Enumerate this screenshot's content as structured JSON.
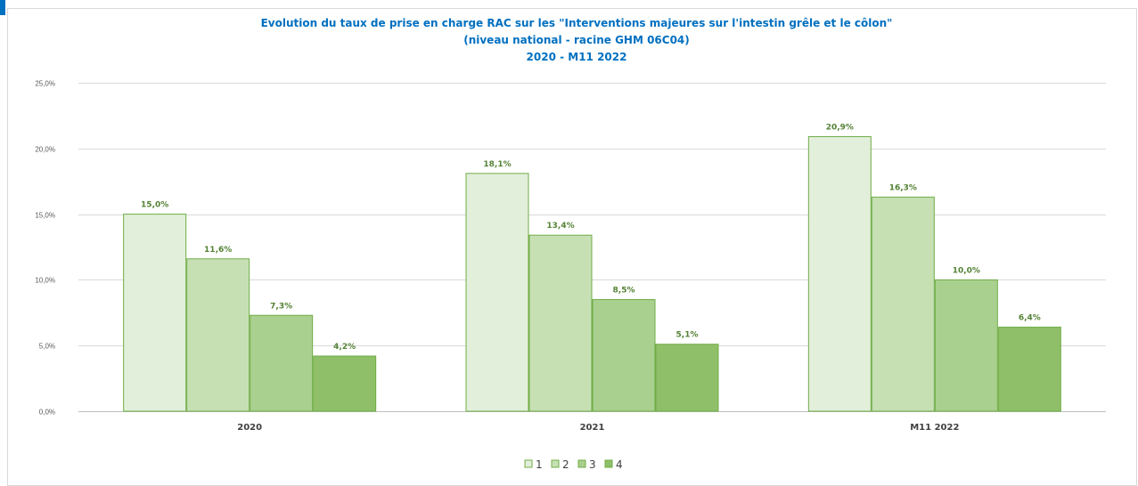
{
  "chart_data": {
    "type": "bar",
    "title_lines": [
      "Evolution du taux de prise en charge RAC sur les \"Interventions majeures sur l'intestin grêle et le côlon\"",
      "(niveau national - racine GHM 06C04)",
      "2020 - M11 2022"
    ],
    "categories": [
      "2020",
      "2021",
      "M11 2022"
    ],
    "series": [
      {
        "name": "1",
        "values": [
          15.0,
          18.1,
          20.9
        ],
        "labels": [
          "15,0%",
          "18,1%",
          "20,9%"
        ],
        "color": "#e2efda"
      },
      {
        "name": "2",
        "values": [
          11.6,
          13.4,
          16.3
        ],
        "labels": [
          "11,6%",
          "13,4%",
          "16,3%"
        ],
        "color": "#c6e0b4"
      },
      {
        "name": "3",
        "values": [
          7.3,
          8.5,
          10.0
        ],
        "labels": [
          "7,3%",
          "8,5%",
          "10,0%"
        ],
        "color": "#a9d08e"
      },
      {
        "name": "4",
        "values": [
          4.2,
          5.1,
          6.4
        ],
        "labels": [
          "4,2%",
          "5,1%",
          "6,4%"
        ],
        "color": "#8fbf69"
      }
    ],
    "y_ticks": [
      "0,0%",
      "5,0%",
      "10,0%",
      "15,0%",
      "20,0%",
      "25,0%"
    ],
    "ylim": [
      0,
      25
    ],
    "grid": true,
    "legend_position": "bottom",
    "bar_edge_color": "#70ad47",
    "accent_color": "#0070c0"
  }
}
